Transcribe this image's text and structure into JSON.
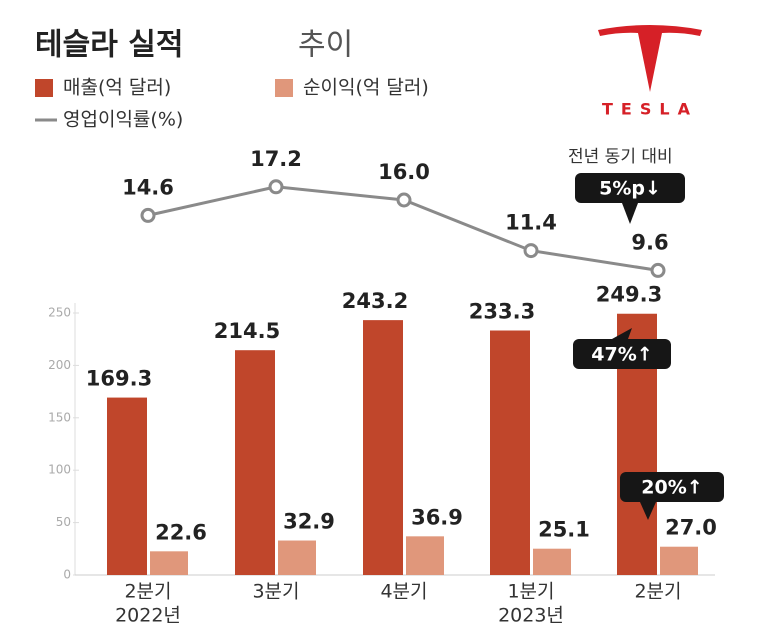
{
  "chart_data": {
    "type": "bar",
    "title": "테슬라 실적",
    "title_suffix": "추이",
    "logo": "TESLA",
    "categories": [
      "2분기",
      "3분기",
      "4분기",
      "1분기",
      "2분기"
    ],
    "year_labels": [
      "2022년",
      null,
      null,
      "2023년",
      null
    ],
    "series": [
      {
        "name": "매출(억 달러)",
        "color": "#c0462b",
        "values": [
          169.3,
          214.5,
          243.2,
          233.3,
          249.3
        ]
      },
      {
        "name": "순이익(억 달러)",
        "color": "#e0977b",
        "values": [
          22.6,
          32.9,
          36.9,
          25.1,
          27.0
        ],
        "value_labels": [
          "22.6",
          "32.9",
          "36.9",
          "25.1",
          "27.0"
        ]
      },
      {
        "name": "영업이익률(%)",
        "type": "line",
        "color": "#8a8a8a",
        "axis": "y2",
        "values": [
          14.6,
          17.2,
          16.0,
          11.4,
          9.6
        ],
        "value_labels": [
          "14.6",
          "17.2",
          "16.0",
          "11.4",
          "9.6"
        ]
      }
    ],
    "ylim": [
      0,
      250
    ],
    "yticks": [
      0,
      50,
      100,
      150,
      200,
      250
    ],
    "annotations": {
      "note": "전년 동기 대비",
      "margin_change": "5%p↓",
      "revenue_change": "47%↑",
      "profit_change": "20%↑"
    }
  }
}
